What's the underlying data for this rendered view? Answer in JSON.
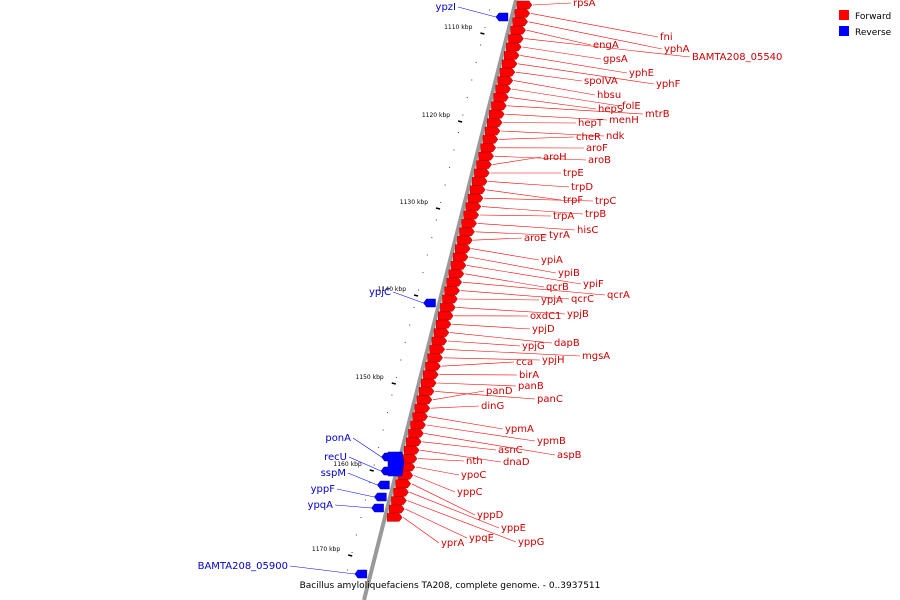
{
  "caption": "Bacillus amyloliquefaciens TA208, complete genome. - 0..3937511",
  "legend": [
    {
      "label": "Forward",
      "color": "#ff0000"
    },
    {
      "label": "Reverse",
      "color": "#0000ff"
    }
  ],
  "scale_ticks": [
    "1110 kbp",
    "1120 kbp",
    "1130 kbp",
    "1140 kbp",
    "1150 kbp",
    "1160 kbp",
    "1170 kbp"
  ],
  "forward_genes": [
    "rpsA",
    "fni",
    "yphA",
    "engA",
    "BAMTA208_05540",
    "gpsA",
    "yphE",
    "yphF",
    "spoIVA",
    "hbsu",
    "folE",
    "hepS",
    "mtrB",
    "menH",
    "hepT",
    "ndk",
    "cheR",
    "aroF",
    "aroB",
    "aroH",
    "trpE",
    "trpD",
    "trpF",
    "trpC",
    "trpB",
    "trpA",
    "hisC",
    "tyrA",
    "aroE",
    "ypiA",
    "ypiB",
    "ypiF",
    "qcrB",
    "qcrA",
    "qcrC",
    "ypjA",
    "ypjB",
    "oxdC1",
    "ypjD",
    "dapB",
    "ypjG",
    "mgsA",
    "ypjH",
    "cca",
    "birA",
    "panB",
    "panC",
    "panD",
    "dinG",
    "ypmA",
    "ypmB",
    "aspB",
    "asnC",
    "dnaD",
    "nth",
    "ypoC",
    "yppC",
    "yppD",
    "yppE",
    "yppG",
    "ypqE",
    "yprA"
  ],
  "reverse_genes": [
    "ypzI",
    "ypjC",
    "ponA",
    "recU",
    "sspM",
    "yppF",
    "ypqA",
    "BAMTA208_05900"
  ]
}
